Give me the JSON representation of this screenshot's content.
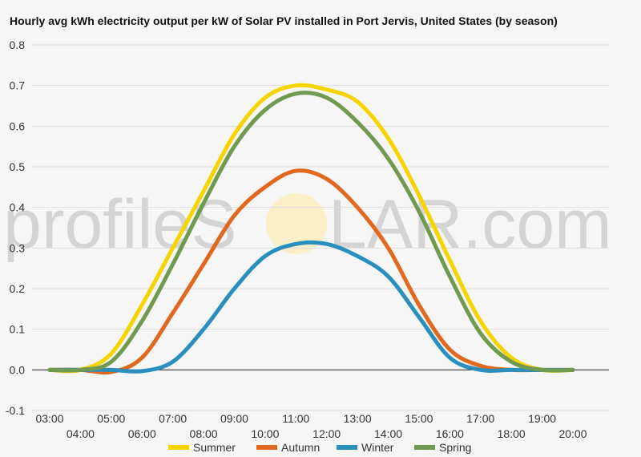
{
  "chart_data": {
    "type": "line",
    "title": "Hourly avg kWh electricity output per kW of Solar PV installed in Port Jervis, United States (by season)",
    "xlabel": "",
    "ylabel": "",
    "ylim": [
      -0.1,
      0.8
    ],
    "yticks": [
      "-0.1",
      "0.0",
      "0.1",
      "0.2",
      "0.3",
      "0.4",
      "0.5",
      "0.6",
      "0.7",
      "0.8"
    ],
    "x": [
      "03:00",
      "04:00",
      "05:00",
      "06:00",
      "07:00",
      "08:00",
      "09:00",
      "10:00",
      "11:00",
      "12:00",
      "13:00",
      "14:00",
      "15:00",
      "16:00",
      "17:00",
      "18:00",
      "19:00",
      "20:00"
    ],
    "grid": true,
    "legend_position": "bottom",
    "watermark": {
      "left": "profileS",
      "right": "LAR.com"
    },
    "series": [
      {
        "name": "Summer",
        "color": "#f5d400",
        "values": [
          0.0,
          0.0,
          0.04,
          0.16,
          0.3,
          0.44,
          0.58,
          0.67,
          0.7,
          0.69,
          0.66,
          0.57,
          0.43,
          0.27,
          0.12,
          0.03,
          0.0,
          0.0
        ]
      },
      {
        "name": "Autumn",
        "color": "#e0681f",
        "values": [
          0.0,
          0.0,
          -0.005,
          0.03,
          0.14,
          0.26,
          0.38,
          0.45,
          0.49,
          0.47,
          0.4,
          0.3,
          0.16,
          0.05,
          0.01,
          0.0,
          0.0,
          0.0
        ]
      },
      {
        "name": "Winter",
        "color": "#2a8fbd",
        "values": [
          0.0,
          0.0,
          0.0,
          -0.003,
          0.02,
          0.1,
          0.2,
          0.28,
          0.31,
          0.31,
          0.28,
          0.23,
          0.13,
          0.03,
          0.0,
          0.0,
          0.0,
          0.0
        ]
      },
      {
        "name": "Spring",
        "color": "#6f9a4f",
        "values": [
          0.0,
          0.0,
          0.02,
          0.12,
          0.26,
          0.41,
          0.55,
          0.64,
          0.68,
          0.67,
          0.61,
          0.52,
          0.39,
          0.23,
          0.09,
          0.02,
          0.0,
          0.0
        ]
      }
    ]
  }
}
